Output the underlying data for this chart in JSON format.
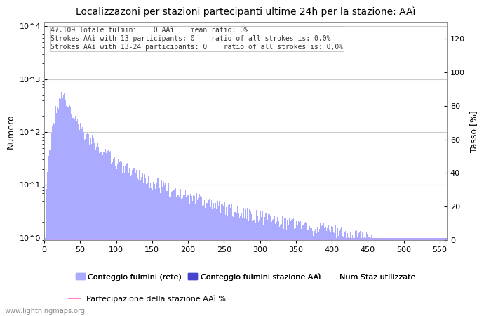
{
  "title": "Localizzazoni per stazioni partecipanti ultime 24h per la stazione: AAì",
  "ylabel_left": "Numero",
  "ylabel_right": "Tasso [%]",
  "annotation_line1": "47.109 Totale fulmini    0 AAì    mean ratio: 0%",
  "annotation_line2": "Strokes AAì with 13 participants: 0    ratio of all strokes is: 0,0%",
  "annotation_line3": "Strokes AAì with 13-24 participants: 0    ratio of all strokes is: 0,0%",
  "legend_label1": "Conteggio fulmini (rete)",
  "legend_label2": "Conteggio fulmini stazione AAì",
  "legend_label3": "Num Staz utilizzate",
  "legend_label4": "Partecipazione della stazione AAì %",
  "bar_color": "#aaaaff",
  "bar_color2": "#4444cc",
  "line_color": "#ff88cc",
  "watermark": "www.lightningmaps.org",
  "xlim": [
    0,
    560
  ],
  "ylim_left": [
    1,
    10000
  ],
  "ylim_right": [
    0,
    130
  ],
  "num_stations": 560,
  "background_color": "#ffffff",
  "grid_color": "#cccccc"
}
